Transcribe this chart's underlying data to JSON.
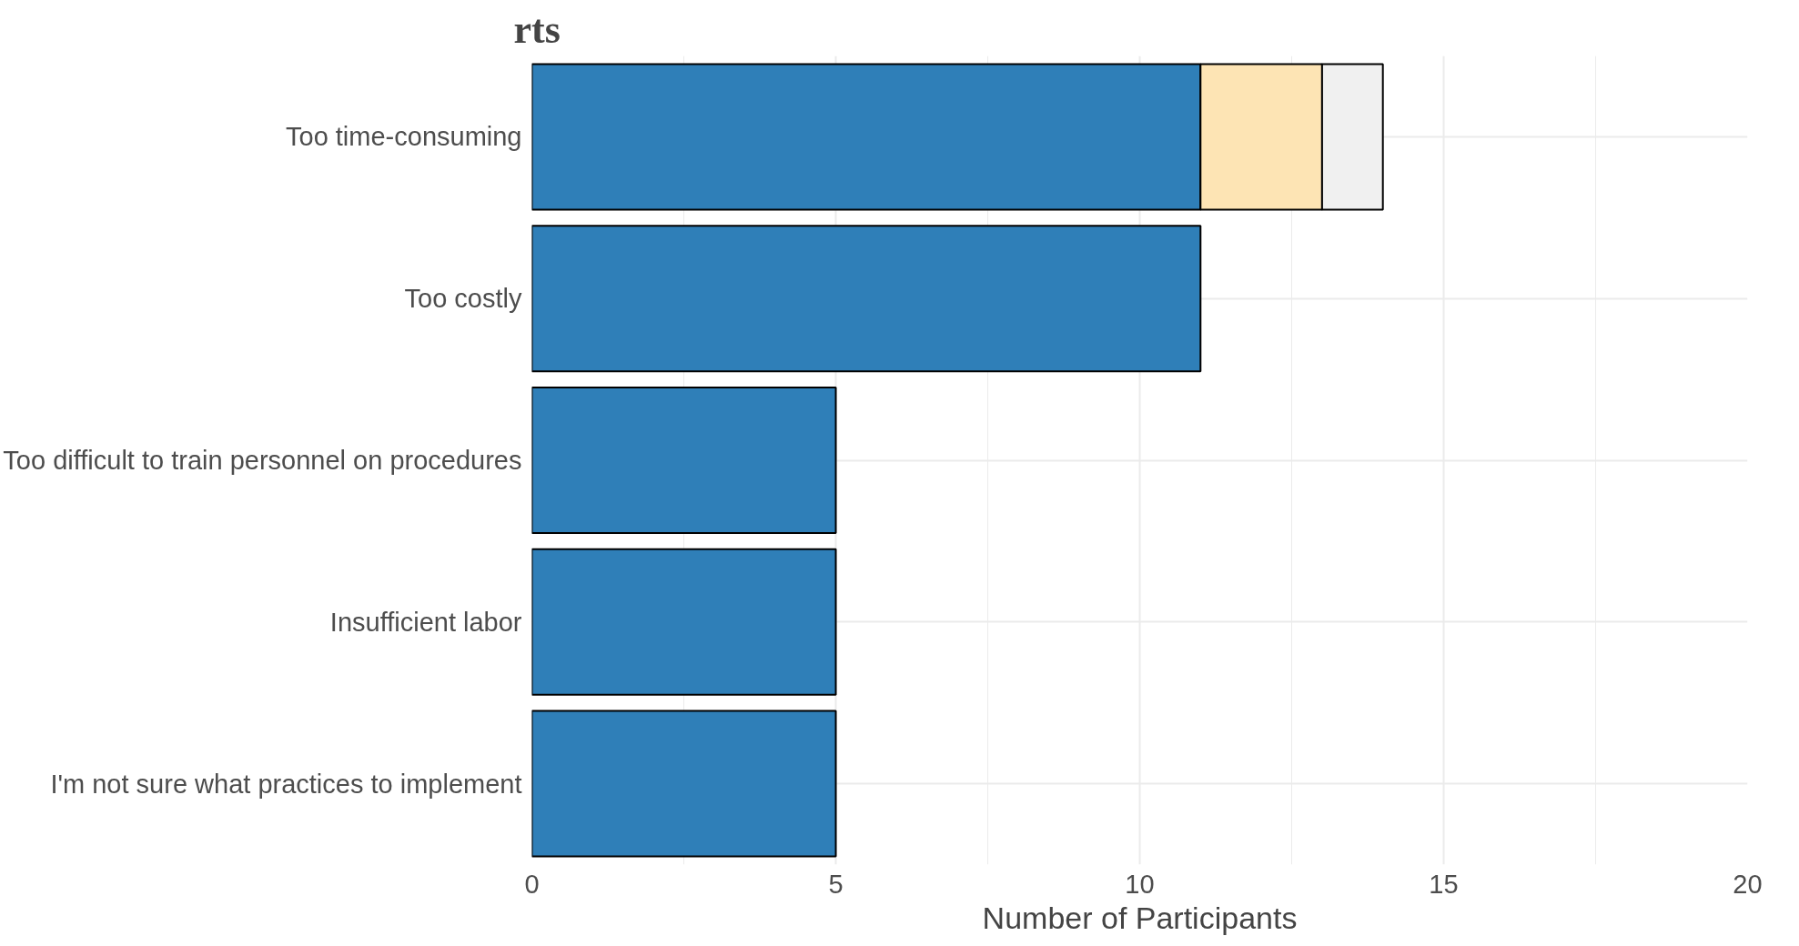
{
  "chart_data": {
    "type": "bar",
    "orientation": "horizontal",
    "stacked": true,
    "title": "rts",
    "xlabel": "Number of Participants",
    "categories": [
      "Too time-consuming",
      "Too costly",
      "Too difficult to train personnel on procedures",
      "Insufficient labor",
      "I'm not sure what practices to implement"
    ],
    "series": [
      {
        "color": "#2f7fb8",
        "values": [
          11,
          11,
          5,
          5,
          5
        ]
      },
      {
        "color": "#fde4b4",
        "values": [
          2,
          null,
          null,
          null,
          null
        ]
      },
      {
        "color": "#f0f0f0",
        "values": [
          1,
          null,
          null,
          null,
          null
        ]
      }
    ],
    "xlim": [
      0,
      20
    ],
    "xticks": [
      0,
      5,
      10,
      15,
      20
    ],
    "grid": true
  }
}
